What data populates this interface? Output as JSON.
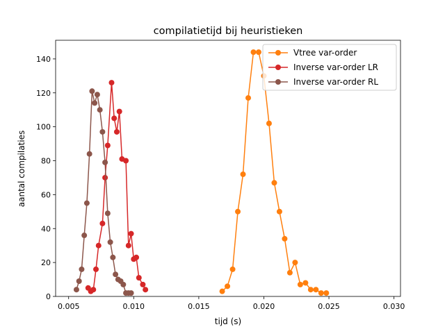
{
  "chart_data": {
    "type": "line",
    "title": "compilatietijd bij heuristieken",
    "xlabel": "tijd (s)",
    "ylabel": "aantal compilaties",
    "xlim": [
      0.004,
      0.0305
    ],
    "ylim": [
      0,
      151
    ],
    "xticks": [
      0.005,
      0.01,
      0.015,
      0.02,
      0.025,
      0.03
    ],
    "xtick_labels": [
      "0.005",
      "0.010",
      "0.015",
      "0.020",
      "0.025",
      "0.030"
    ],
    "yticks": [
      0,
      20,
      40,
      60,
      80,
      100,
      120,
      140
    ],
    "ytick_labels": [
      "0",
      "20",
      "40",
      "60",
      "80",
      "100",
      "120",
      "140"
    ],
    "grid": false,
    "legend_position": "top-right",
    "series": [
      {
        "name": "Vtree var-order",
        "color": "#ff7f0e",
        "points": [
          [
            0.0168,
            3
          ],
          [
            0.0172,
            6
          ],
          [
            0.0176,
            16
          ],
          [
            0.018,
            50
          ],
          [
            0.0184,
            72
          ],
          [
            0.0188,
            117
          ],
          [
            0.0192,
            144
          ],
          [
            0.0196,
            144
          ],
          [
            0.02,
            130
          ],
          [
            0.0204,
            102
          ],
          [
            0.0208,
            67
          ],
          [
            0.0212,
            50
          ],
          [
            0.0216,
            34
          ],
          [
            0.022,
            14
          ],
          [
            0.0224,
            20
          ],
          [
            0.0228,
            7
          ],
          [
            0.0232,
            8
          ],
          [
            0.0236,
            4
          ],
          [
            0.024,
            4
          ],
          [
            0.0244,
            2
          ],
          [
            0.0248,
            2
          ]
        ]
      },
      {
        "name": "Inverse var-order LR",
        "color": "#d62728",
        "points": [
          [
            0.0065,
            5
          ],
          [
            0.0067,
            3
          ],
          [
            0.0069,
            4
          ],
          [
            0.0071,
            16
          ],
          [
            0.0073,
            30
          ],
          [
            0.0076,
            43
          ],
          [
            0.0078,
            70
          ],
          [
            0.008,
            89
          ],
          [
            0.0083,
            126
          ],
          [
            0.0085,
            105
          ],
          [
            0.0087,
            97
          ],
          [
            0.0089,
            109
          ],
          [
            0.0091,
            81
          ],
          [
            0.0094,
            80
          ],
          [
            0.0096,
            30
          ],
          [
            0.0098,
            37
          ],
          [
            0.01,
            22
          ],
          [
            0.0102,
            23
          ],
          [
            0.0104,
            11
          ],
          [
            0.0107,
            7
          ],
          [
            0.0109,
            4
          ]
        ]
      },
      {
        "name": "Inverse var-order RL",
        "color": "#8c564b",
        "points": [
          [
            0.0056,
            4
          ],
          [
            0.0058,
            9
          ],
          [
            0.006,
            16
          ],
          [
            0.0062,
            36
          ],
          [
            0.0064,
            55
          ],
          [
            0.0066,
            84
          ],
          [
            0.0068,
            121
          ],
          [
            0.007,
            114
          ],
          [
            0.0072,
            119
          ],
          [
            0.0074,
            110
          ],
          [
            0.0076,
            97
          ],
          [
            0.0078,
            79
          ],
          [
            0.008,
            49
          ],
          [
            0.0082,
            32
          ],
          [
            0.0084,
            23
          ],
          [
            0.0086,
            13
          ],
          [
            0.0088,
            10
          ],
          [
            0.009,
            9
          ],
          [
            0.0092,
            7
          ],
          [
            0.0094,
            2
          ],
          [
            0.0096,
            2
          ],
          [
            0.0098,
            2
          ]
        ]
      }
    ]
  }
}
